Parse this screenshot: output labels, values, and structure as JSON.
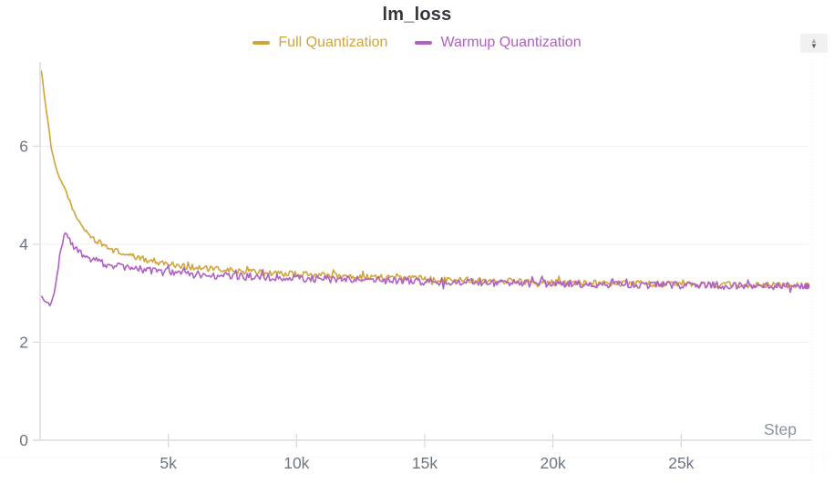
{
  "chart": {
    "title": "lm_loss",
    "x_axis_label": "Step"
  },
  "controls": {
    "panel_stepper": {
      "up_icon": "▲",
      "down_icon": "▼"
    }
  },
  "colors": {
    "full_quantization": "#d2a437",
    "warmup_quantization": "#b25fc4",
    "grid": "#efefef",
    "axis": "#e4e4e4",
    "tick": "#d9d9d9",
    "tick_label": "#6e7582",
    "step_label": "#8b929c"
  },
  "chart_data": {
    "type": "line",
    "title": "lm_loss",
    "xlabel": "Step",
    "ylabel": "",
    "xlim": [
      0,
      30000
    ],
    "ylim": [
      0,
      7.68
    ],
    "grid": "horizontal",
    "legend_position": "top-center",
    "x_ticks": {
      "values": [
        5000,
        10000,
        15000,
        20000,
        25000
      ],
      "labels": [
        "5k",
        "10k",
        "15k",
        "20k",
        "25k"
      ]
    },
    "y_ticks": {
      "values": [
        0,
        2,
        4,
        6
      ],
      "labels": [
        "0",
        "2",
        "4",
        "6"
      ]
    },
    "end_markers": true,
    "series": [
      {
        "name": "Full Quantization",
        "color": "#d2a437",
        "noise_amplitude": 0.062,
        "noise_ramp_steps": 2500,
        "x": [
          50,
          150,
          250,
          350,
          420,
          550,
          650,
          750,
          850,
          960,
          1100,
          1250,
          1400,
          1600,
          1900,
          2100,
          2400,
          2700,
          3000,
          3500,
          4000,
          4500,
          5000,
          5500,
          6000,
          6500,
          7000,
          8000,
          9000,
          10000,
          11000,
          12000,
          13000,
          14000,
          15000,
          16000,
          17000,
          18000,
          19000,
          20000,
          21000,
          22000,
          23000,
          24000,
          25000,
          26000,
          27000,
          28000,
          29000,
          29900
        ],
        "y": [
          7.55,
          7.1,
          6.7,
          6.35,
          6.0,
          5.7,
          5.5,
          5.35,
          5.25,
          5.15,
          4.95,
          4.75,
          4.55,
          4.4,
          4.2,
          4.1,
          4.0,
          3.92,
          3.85,
          3.76,
          3.7,
          3.65,
          3.6,
          3.56,
          3.53,
          3.5,
          3.48,
          3.44,
          3.41,
          3.39,
          3.37,
          3.35,
          3.33,
          3.31,
          3.3,
          3.28,
          3.27,
          3.26,
          3.24,
          3.23,
          3.22,
          3.21,
          3.2,
          3.19,
          3.18,
          3.17,
          3.17,
          3.16,
          3.16,
          3.16
        ]
      },
      {
        "name": "Warmup Quantization",
        "color": "#b25fc4",
        "noise_amplitude": 0.078,
        "noise_ramp_steps": 1200,
        "x": [
          50,
          150,
          250,
          400,
          550,
          650,
          750,
          850,
          960,
          1100,
          1300,
          1600,
          2000,
          2500,
          3000,
          3700,
          4500,
          5500,
          7000,
          8500,
          10000,
          12000,
          14000,
          16000,
          18000,
          20000,
          22000,
          24000,
          26000,
          28000,
          29900
        ],
        "y": [
          2.95,
          2.85,
          2.8,
          2.78,
          3.0,
          3.3,
          3.7,
          4.0,
          4.25,
          4.1,
          3.95,
          3.8,
          3.7,
          3.6,
          3.55,
          3.5,
          3.45,
          3.4,
          3.36,
          3.33,
          3.3,
          3.28,
          3.25,
          3.23,
          3.21,
          3.2,
          3.18,
          3.17,
          3.16,
          3.15,
          3.14
        ]
      }
    ]
  }
}
